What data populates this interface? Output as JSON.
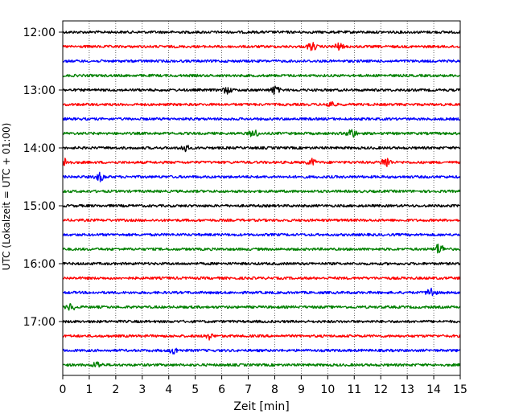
{
  "chart_data": {
    "type": "line",
    "title": "",
    "xlabel": "Zeit  [min]",
    "ylabel": "UTC (Lokalzeit = UTC + 01:00)",
    "xlim": [
      0,
      15
    ],
    "x_ticks": [
      "0",
      "1",
      "2",
      "3",
      "4",
      "5",
      "6",
      "7",
      "8",
      "9",
      "10",
      "11",
      "12",
      "13",
      "14",
      "15"
    ],
    "y_ticks": [
      "12:00",
      "13:00",
      "14:00",
      "15:00",
      "16:00",
      "17:00"
    ],
    "grid": "vertical-dotted",
    "trace_start": "12:00",
    "trace_interval_minutes": 15,
    "trace_count": 24,
    "colors": [
      "#000000",
      "#ff0000",
      "#0000ff",
      "#008000"
    ],
    "events": [
      {
        "trace": 1,
        "x": 9.4,
        "amp": 5
      },
      {
        "trace": 1,
        "x": 10.4,
        "amp": 4
      },
      {
        "trace": 4,
        "x": 6.2,
        "amp": 4
      },
      {
        "trace": 4,
        "x": 8.0,
        "amp": 5
      },
      {
        "trace": 5,
        "x": 10.1,
        "amp": 4
      },
      {
        "trace": 7,
        "x": 7.2,
        "amp": 5
      },
      {
        "trace": 7,
        "x": 10.9,
        "amp": 6
      },
      {
        "trace": 8,
        "x": 4.6,
        "amp": 4
      },
      {
        "trace": 9,
        "x": 0.1,
        "amp": 5
      },
      {
        "trace": 9,
        "x": 9.4,
        "amp": 4
      },
      {
        "trace": 9,
        "x": 12.2,
        "amp": 7
      },
      {
        "trace": 10,
        "x": 1.4,
        "amp": 5
      },
      {
        "trace": 15,
        "x": 14.2,
        "amp": 7
      },
      {
        "trace": 18,
        "x": 13.9,
        "amp": 6
      },
      {
        "trace": 19,
        "x": 0.3,
        "amp": 4
      },
      {
        "trace": 21,
        "x": 5.5,
        "amp": 4
      },
      {
        "trace": 22,
        "x": 4.2,
        "amp": 4
      },
      {
        "trace": 23,
        "x": 1.3,
        "amp": 4
      }
    ]
  }
}
